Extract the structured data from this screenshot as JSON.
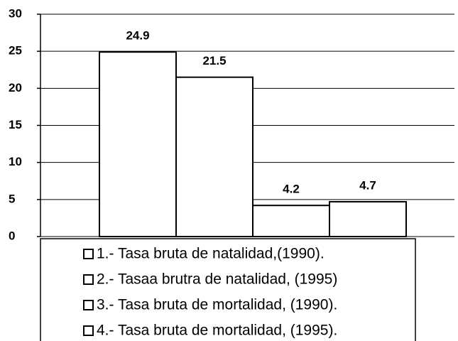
{
  "chart_data": {
    "type": "bar",
    "categories": [
      null
    ],
    "series": [
      {
        "name": "1.- Tasa bruta de natalidad,(1990).",
        "color": "#ffffff",
        "values": [
          24.9
        ]
      },
      {
        "name": "2.- Tasaa brutra de natalidad, (1995)",
        "color": "#ffffff",
        "values": [
          21.5
        ]
      },
      {
        "name": "3.- Tasa bruta de mortalidad, (1990).",
        "color": "#ffffff",
        "values": [
          4.2
        ]
      },
      {
        "name": "4.- Tasa bruta de mortalidad, (1995).",
        "color": "#ffffff",
        "values": [
          4.7
        ]
      }
    ],
    "ylim": [
      0,
      30
    ],
    "yticks": [
      0,
      5,
      10,
      15,
      20,
      25,
      30
    ],
    "grid": true,
    "legend": "bottom"
  }
}
